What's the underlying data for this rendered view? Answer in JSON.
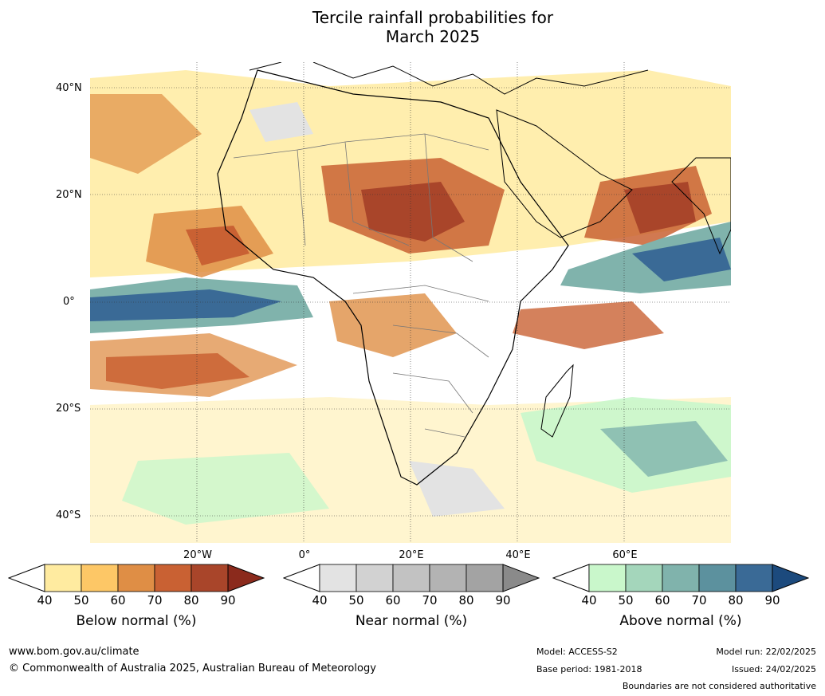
{
  "title_line1": "Tercile rainfall probabilities for",
  "title_line2": "March 2025",
  "map": {
    "lat_labels": [
      "40°N",
      "20°N",
      "0°",
      "20°S",
      "40°S"
    ],
    "lon_labels": [
      "20°W",
      "0°",
      "20°E",
      "40°E",
      "60°E"
    ],
    "extent": {
      "lon_min": -30,
      "lon_max": 80,
      "lat_min": -45,
      "lat_max": 45
    }
  },
  "legends": [
    {
      "title": "Below normal (%)",
      "ticks": [
        "40",
        "50",
        "60",
        "70",
        "80",
        "90"
      ],
      "colors": [
        "#ffffff",
        "#ffeba0",
        "#fdc766",
        "#df8e45",
        "#c96133",
        "#a9452a",
        "#8b2a1c"
      ]
    },
    {
      "title": "Near normal (%)",
      "ticks": [
        "40",
        "50",
        "60",
        "70",
        "80",
        "90"
      ],
      "colors": [
        "#ffffff",
        "#e3e3e3",
        "#d2d2d2",
        "#c2c2c2",
        "#b3b3b3",
        "#a3a3a3",
        "#8a8a8a"
      ]
    },
    {
      "title": "Above normal (%)",
      "ticks": [
        "40",
        "50",
        "60",
        "70",
        "80",
        "90"
      ],
      "colors": [
        "#ffffff",
        "#c9f7cb",
        "#a4d6bb",
        "#80b3ac",
        "#5c919e",
        "#3a6a96",
        "#1c4a7d"
      ]
    }
  ],
  "footer": {
    "url": "www.bom.gov.au/climate",
    "copyright": "© Commonwealth of Australia 2025, Australian Bureau of Meteorology",
    "model": "Model: ACCESS-S2",
    "base_period": "Base period: 1981-2018",
    "model_run": "Model run: 22/02/2025",
    "issued": "Issued: 24/02/2025",
    "disclaimer": "Boundaries are not considered authoritative"
  }
}
